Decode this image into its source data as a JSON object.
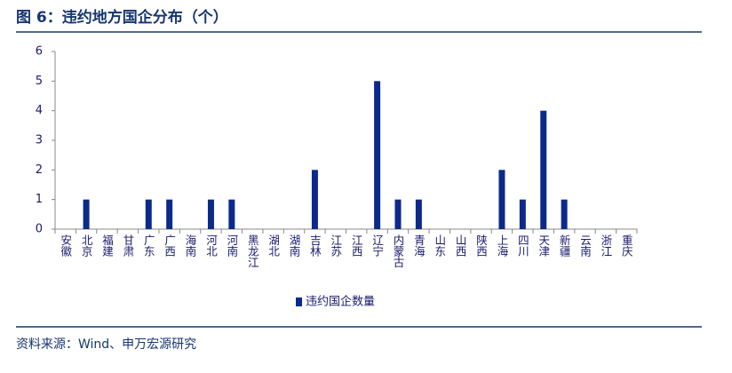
{
  "chart_data": {
    "type": "bar",
    "title": "图 6：违约地方国企分布（个）",
    "source": "资料来源：Wind、申万宏源研究",
    "categories": [
      "安徽",
      "北京",
      "福建",
      "甘肃",
      "广东",
      "广西",
      "海南",
      "河北",
      "河南",
      "黑龙江",
      "湖北",
      "湖南",
      "吉林",
      "江苏",
      "江西",
      "辽宁",
      "内蒙古",
      "青海",
      "山东",
      "山西",
      "陕西",
      "上海",
      "四川",
      "天津",
      "新疆",
      "云南",
      "浙江",
      "重庆"
    ],
    "series": [
      {
        "name": "违约国企数量",
        "color": "#0d2a8a",
        "values": [
          0,
          1,
          0,
          0,
          1,
          1,
          0,
          1,
          1,
          0,
          0,
          0,
          2,
          0,
          0,
          5,
          1,
          1,
          0,
          0,
          0,
          2,
          1,
          4,
          1,
          0,
          0,
          0
        ]
      }
    ],
    "ylim": [
      0,
      6
    ],
    "yticks": [
      0,
      1,
      2,
      3,
      4,
      5,
      6
    ],
    "legend": "bottom"
  }
}
